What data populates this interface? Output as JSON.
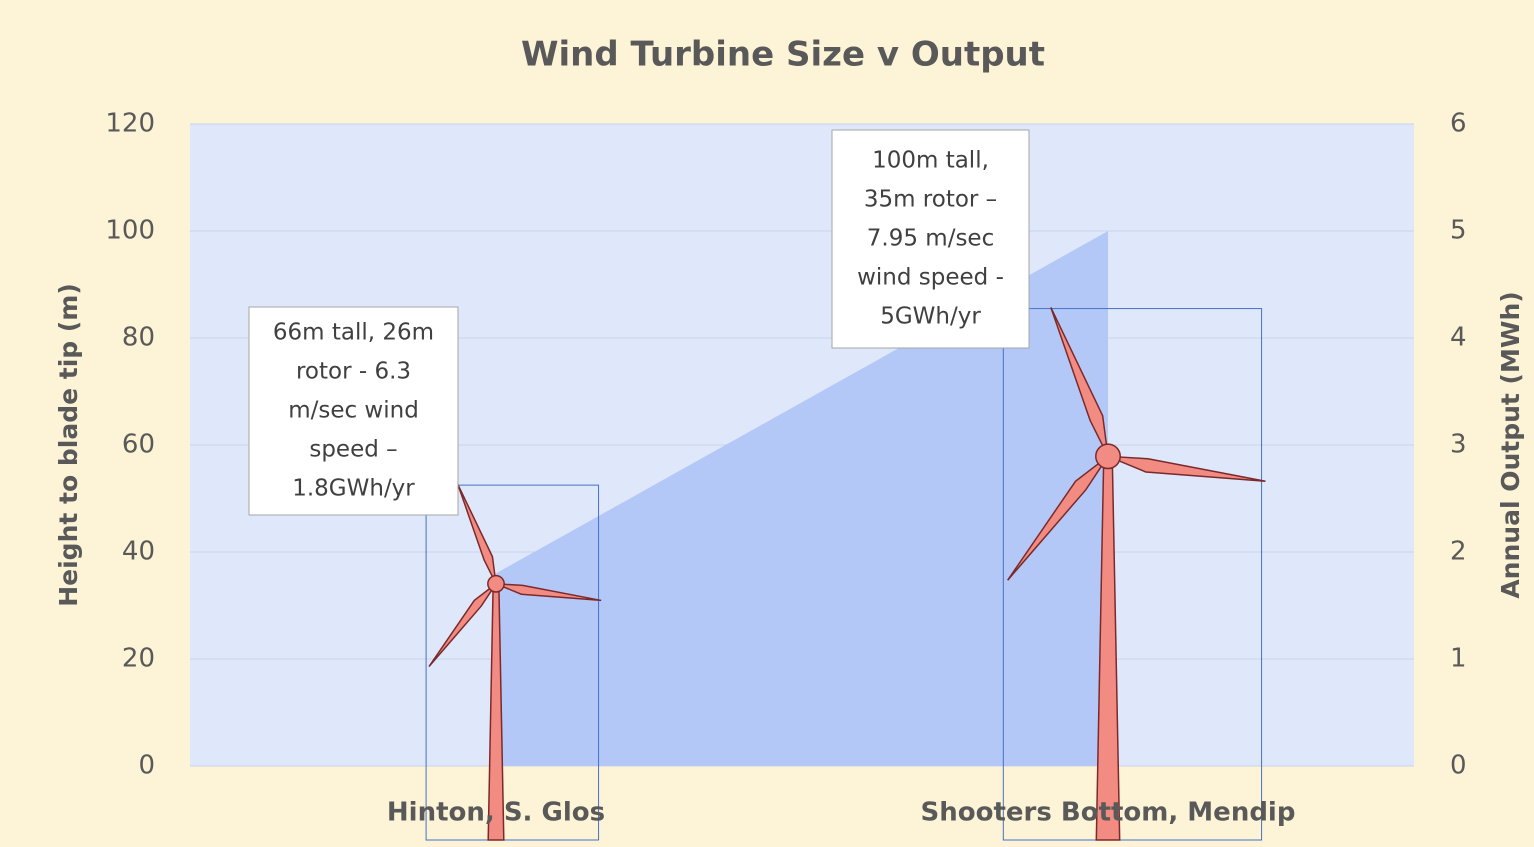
{
  "chart_data": {
    "type": "area-turbine",
    "title": "Wind Turbine Size v Output",
    "y_label": "Height to blade tip (m)",
    "y2_label": "Annual Output (MWh)",
    "categories": [
      "Hinton, S. Glos",
      "Shooters Bottom, Mendip"
    ],
    "series": [
      {
        "kind": "area",
        "axis": "y2",
        "color": "#b4c8f8",
        "values": [
          1.8,
          5
        ]
      },
      {
        "kind": "turbine",
        "color": "#f28b82",
        "values": [
          52.5,
          85.5
        ]
      }
    ],
    "ylim": [
      0,
      120
    ],
    "yticks": [
      0,
      20,
      40,
      60,
      80,
      100,
      120
    ],
    "y2lim": [
      0,
      6
    ],
    "y2ticks": [
      0,
      1,
      2,
      3,
      4,
      5,
      6
    ],
    "grid": true,
    "annotations": [
      {
        "lines": [
          "66m tall, 26m",
          "rotor - 6.3",
          "m/sec wind",
          "speed –",
          "1.8GWh/yr"
        ]
      },
      {
        "lines": [
          "100m tall,",
          "35m rotor –",
          "7.95 m/sec",
          "wind speed -",
          "5GWh/yr"
        ]
      }
    ]
  }
}
